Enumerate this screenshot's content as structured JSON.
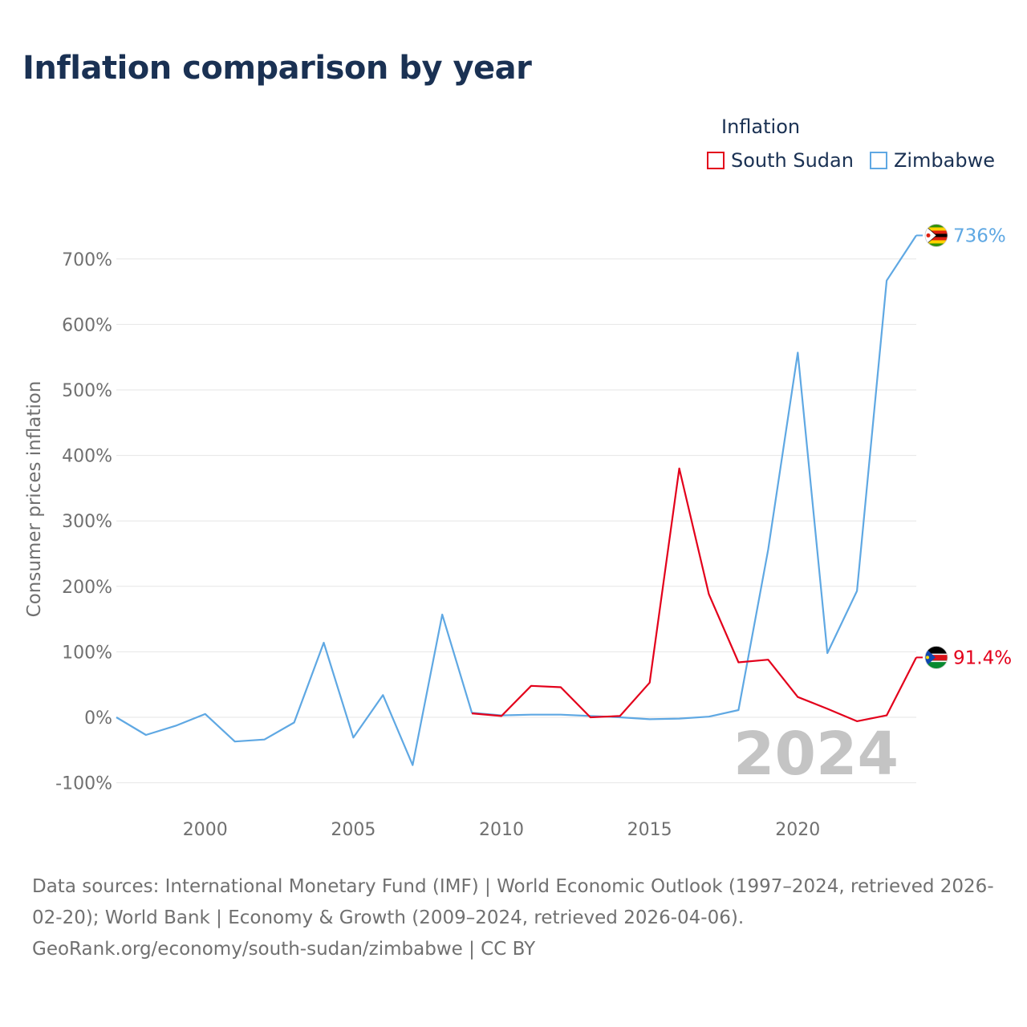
{
  "title": "Inflation comparison by year",
  "legend": {
    "title": "Inflation",
    "items": [
      {
        "label": "South Sudan",
        "color": "#e3001b"
      },
      {
        "label": "Zimbabwe",
        "color": "#5fa8e3"
      }
    ]
  },
  "footer": {
    "sources": "Data sources: International Monetary Fund (IMF) | World Economic Outlook (1997–2024, retrieved 2026-02-20); World Bank | Economy & Growth (2009–2024, retrieved 2026-04-06).",
    "link": "GeoRank.org/economy/south-sudan/zimbabwe | CC BY"
  },
  "chart_data": {
    "type": "line",
    "title": "Inflation comparison by year",
    "ylabel": "Consumer prices inflation",
    "xlabel": "",
    "xlim": [
      1997,
      2024
    ],
    "ylim": [
      -110,
      765
    ],
    "xticks": [
      2000,
      2005,
      2010,
      2015,
      2020
    ],
    "yticks": [
      -100,
      0,
      100,
      200,
      300,
      400,
      500,
      600,
      700
    ],
    "ytick_labels": [
      "-100%",
      "0%",
      "100%",
      "200%",
      "300%",
      "400%",
      "500%",
      "600%",
      "700%"
    ],
    "year_watermark": "2024",
    "series": [
      {
        "name": "South Sudan",
        "color": "#e3001b",
        "end_label": "91.4%",
        "x": [
          2009,
          2010,
          2011,
          2012,
          2013,
          2014,
          2015,
          2016,
          2017,
          2018,
          2019,
          2020,
          2021,
          2022,
          2023,
          2024
        ],
        "values": [
          6,
          2,
          48,
          46,
          0,
          2,
          53,
          380,
          188,
          84,
          88,
          31,
          13,
          -6,
          3,
          91.4
        ]
      },
      {
        "name": "Zimbabwe",
        "color": "#5fa8e3",
        "end_label": "736%",
        "x": [
          1997,
          1998,
          1999,
          2000,
          2001,
          2002,
          2003,
          2004,
          2005,
          2006,
          2007,
          2008,
          2009,
          2010,
          2011,
          2012,
          2013,
          2014,
          2015,
          2016,
          2017,
          2018,
          2019,
          2020,
          2021,
          2022,
          2023,
          2024
        ],
        "values": [
          0,
          -27,
          -13,
          5,
          -37,
          -34,
          -8,
          114,
          -31,
          34,
          -73,
          157,
          7,
          3,
          4,
          4,
          2,
          0,
          -3,
          -2,
          1,
          11,
          256,
          557,
          98,
          193,
          667,
          736
        ]
      }
    ]
  }
}
